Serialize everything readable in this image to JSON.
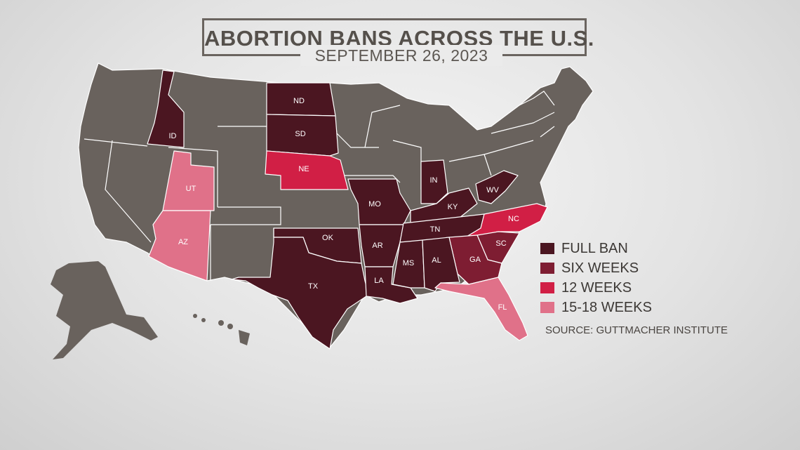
{
  "title": "ABORTION BANS ACROSS THE U.S.",
  "subtitle": "SEPTEMBER 26, 2023",
  "source": "SOURCE: GUTTMACHER INSTITUTE",
  "colors": {
    "full_ban": "#4b1621",
    "six_weeks": "#7e1d32",
    "twelve_weeks": "#d11f45",
    "fifteen_eighteen": "#e07189",
    "none": "#69625d"
  },
  "legend": [
    {
      "label": "FULL BAN",
      "category": "full_ban"
    },
    {
      "label": "SIX WEEKS",
      "category": "six_weeks"
    },
    {
      "label": "12 WEEKS",
      "category": "twelve_weeks"
    },
    {
      "label": "15-18 WEEKS",
      "category": "fifteen_eighteen"
    }
  ],
  "states": {
    "ID": {
      "label": "ID",
      "category": "full_ban"
    },
    "ND": {
      "label": "ND",
      "category": "full_ban"
    },
    "SD": {
      "label": "SD",
      "category": "full_ban"
    },
    "NE": {
      "label": "NE",
      "category": "twelve_weeks"
    },
    "UT": {
      "label": "UT",
      "category": "fifteen_eighteen"
    },
    "AZ": {
      "label": "AZ",
      "category": "fifteen_eighteen"
    },
    "MO": {
      "label": "MO",
      "category": "full_ban"
    },
    "IN": {
      "label": "IN",
      "category": "full_ban"
    },
    "KY": {
      "label": "KY",
      "category": "full_ban"
    },
    "WV": {
      "label": "WV",
      "category": "full_ban"
    },
    "OK": {
      "label": "OK",
      "category": "full_ban"
    },
    "AR": {
      "label": "AR",
      "category": "full_ban"
    },
    "TN": {
      "label": "TN",
      "category": "full_ban"
    },
    "NC": {
      "label": "NC",
      "category": "twelve_weeks"
    },
    "SC": {
      "label": "SC",
      "category": "six_weeks"
    },
    "GA": {
      "label": "GA",
      "category": "six_weeks"
    },
    "TX": {
      "label": "TX",
      "category": "full_ban"
    },
    "LA": {
      "label": "LA",
      "category": "full_ban"
    },
    "MS": {
      "label": "MS",
      "category": "full_ban"
    },
    "AL": {
      "label": "AL",
      "category": "full_ban"
    },
    "FL": {
      "label": "FL",
      "category": "fifteen_eighteen"
    }
  }
}
